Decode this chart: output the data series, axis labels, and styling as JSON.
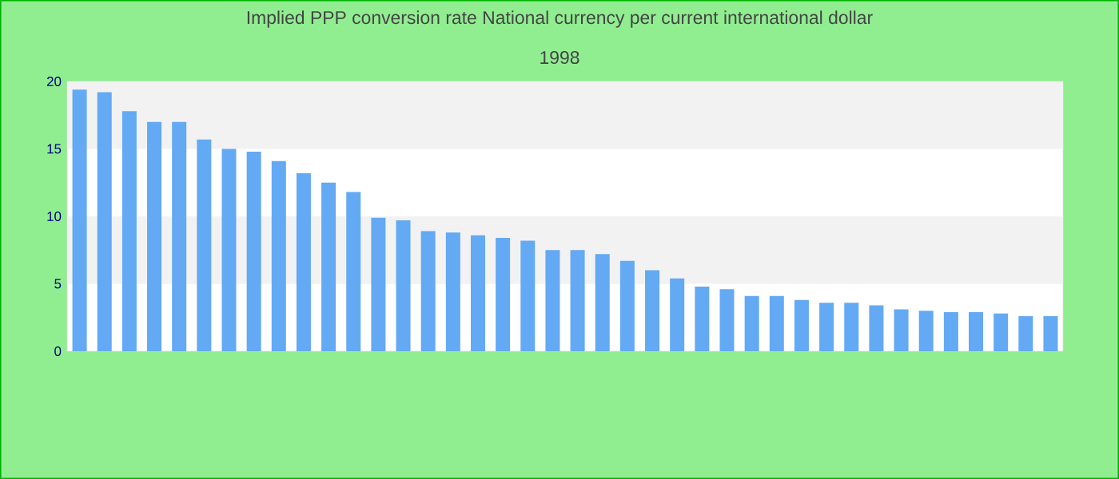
{
  "chart_data": {
    "type": "bar",
    "title": "Implied PPP conversion rate  National currency per current international dollar",
    "subtitle": "1998",
    "categories": [
      null,
      null,
      null,
      null,
      null,
      null,
      null,
      null,
      null,
      null,
      null,
      null,
      null,
      null,
      null,
      null,
      null,
      null,
      null,
      null,
      null,
      null,
      null,
      null,
      null,
      null,
      null,
      null,
      null,
      null,
      null,
      null,
      null,
      null,
      null,
      null,
      null,
      null,
      null,
      null
    ],
    "values": [
      19.4,
      19.2,
      17.8,
      17.0,
      17.0,
      15.7,
      15.0,
      14.8,
      14.1,
      13.2,
      12.5,
      11.8,
      9.9,
      9.7,
      8.9,
      8.8,
      8.6,
      8.4,
      8.2,
      7.5,
      7.5,
      7.2,
      6.7,
      6.0,
      5.4,
      4.8,
      4.6,
      4.1,
      4.1,
      3.8,
      3.6,
      3.6,
      3.4,
      3.1,
      3.0,
      2.9,
      2.9,
      2.8,
      2.6,
      2.6
    ],
    "color": "#63a9f4",
    "ylim": [
      0,
      20
    ],
    "yticks": [
      0,
      5,
      10,
      15,
      20
    ]
  }
}
